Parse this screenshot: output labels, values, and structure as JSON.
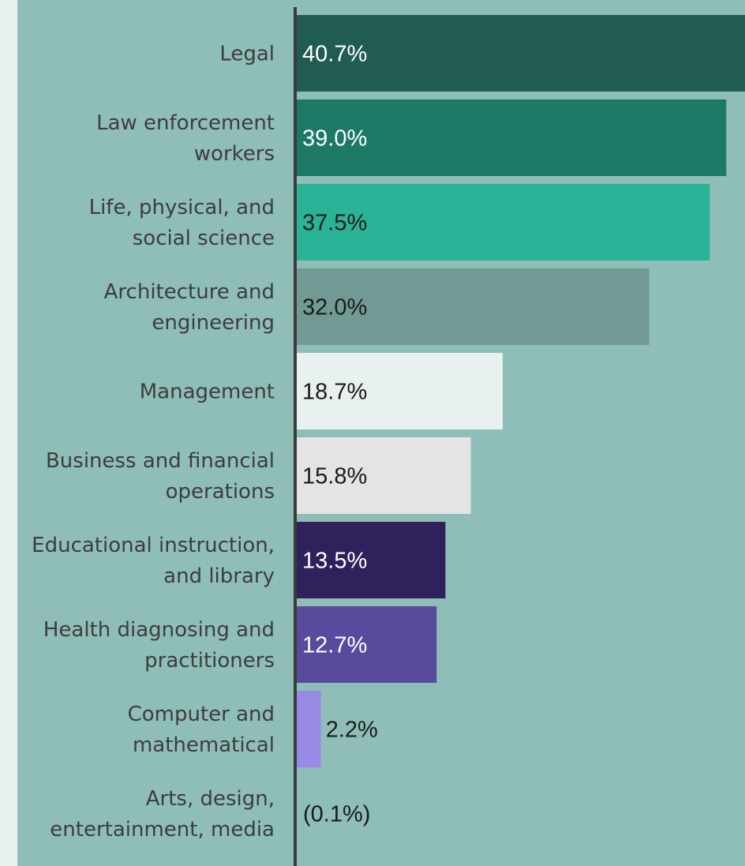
{
  "chart_data": {
    "type": "bar",
    "orientation": "horizontal",
    "title": "",
    "xlabel": "",
    "ylabel": "",
    "grid": false,
    "legend": "none",
    "xlim": [
      0,
      40.7
    ],
    "categories": [
      [
        "Legal"
      ],
      [
        "Law enforcement",
        "workers"
      ],
      [
        "Life, physical, and",
        "social science"
      ],
      [
        "Architecture and",
        "engineering"
      ],
      [
        "Management"
      ],
      [
        "Business and financial",
        "operations"
      ],
      [
        "Educational instruction,",
        "and library"
      ],
      [
        "Health diagnosing and",
        "practitioners"
      ],
      [
        "Computer and",
        "mathematical"
      ],
      [
        "Arts, design,",
        "entertainment, media"
      ]
    ],
    "values": [
      40.7,
      39.0,
      37.5,
      32.0,
      18.7,
      15.8,
      13.5,
      12.7,
      2.2,
      -0.1
    ],
    "value_labels": [
      "40.7%",
      "39.0%",
      "37.5%",
      "32.0%",
      "18.7%",
      "15.8%",
      "13.5%",
      "12.7%",
      "2.2%",
      "(0.1%)"
    ],
    "colors": [
      "#215c52",
      "#1d7966",
      "#2bb398",
      "#729a94",
      "#e8f1f0",
      "#e4e4e4",
      "#2f225c",
      "#5a4a9e",
      "#998ae6",
      "#ffffff"
    ],
    "label_colors": [
      "#ffffff",
      "#ffffff",
      "#1a1a1a",
      "#1a1a1a",
      "#1a1a1a",
      "#1a1a1a",
      "#ffffff",
      "#ffffff",
      "#1a1a1a",
      "#1a1a1a"
    ]
  }
}
